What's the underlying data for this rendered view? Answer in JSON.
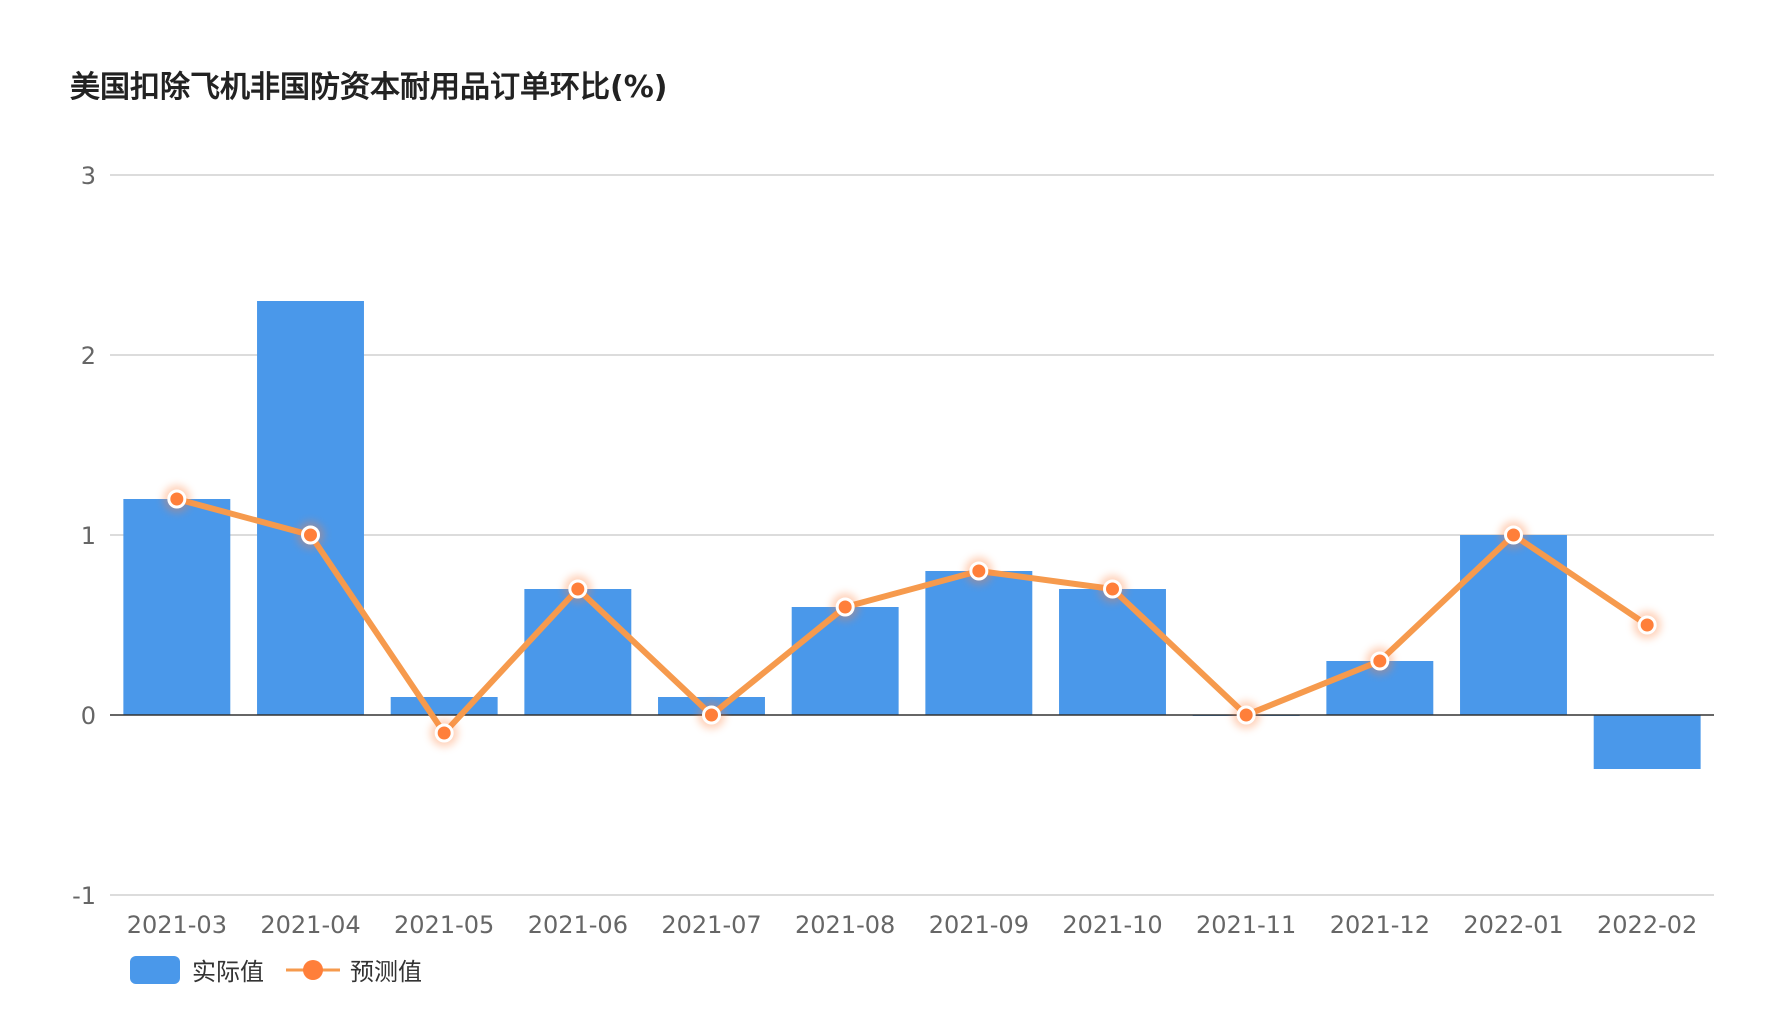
{
  "chart_data": {
    "type": "bar",
    "title": "美国扣除飞机非国防资本耐用品订单环比(%)",
    "categories": [
      "2021-03",
      "2021-04",
      "2021-05",
      "2021-06",
      "2021-07",
      "2021-08",
      "2021-09",
      "2021-10",
      "2021-11",
      "2021-12",
      "2022-01",
      "2022-02"
    ],
    "series": [
      {
        "name": "实际值",
        "type": "bar",
        "color": "#4A98EA",
        "values": [
          1.2,
          2.3,
          0.1,
          0.7,
          0.1,
          0.6,
          0.8,
          0.7,
          0.0,
          0.3,
          1.0,
          -0.3
        ]
      },
      {
        "name": "预测值",
        "type": "line",
        "color": "#F69A4D",
        "values": [
          1.2,
          1.0,
          -0.1,
          0.7,
          0.0,
          0.6,
          0.8,
          0.7,
          0.0,
          0.3,
          1.0,
          0.5
        ]
      }
    ],
    "y_ticks": [
      3,
      2,
      1,
      0,
      -1
    ],
    "ylim": [
      -1,
      3
    ],
    "grid": true,
    "legend_position": "bottom-left"
  }
}
